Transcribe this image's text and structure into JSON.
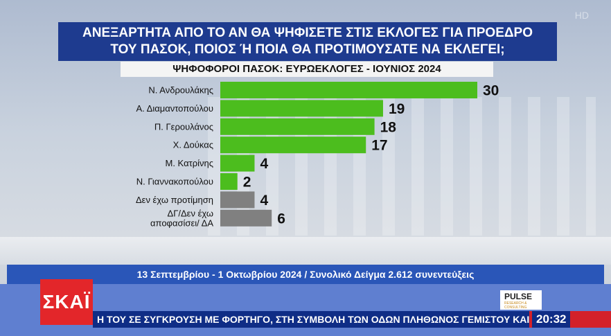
{
  "channel": {
    "hd_badge": "HD",
    "logo_text": "ΣΚΑΪ"
  },
  "poll": {
    "title_line1": "ΑΝΕΞΑΡΤΗΤΑ ΑΠΟ ΤΟ ΑΝ ΘΑ ΨΗΦΙΣΕΤΕ ΣΤΙΣ ΕΚΛΟΓΕΣ ΓΙΑ ΠΡΟΕΔΡΟ",
    "title_line2": "ΤΟΥ ΠΑΣΟΚ, ΠΟΙΟΣ Ή ΠΟΙΑ ΘΑ ΠΡΟΤΙΜΟΥΣΑΤΕ ΝΑ ΕΚΛΕΓΕΙ;",
    "subtitle": "ΨΗΦΟΦΟΡΟΙ ΠΑΣΟΚ: ΕΥΡΩΕΚΛΟΓΕΣ - ΙΟΥΝΙΟΣ 2024",
    "source": "13 Σεπτεμβρίου - 1 Οκτωβρίου 2024 / Συνολικό Δείγμα 2.612 συνεντεύξεις",
    "pollster_logo": "PULSE",
    "pollster_tagline": "RESEARCH & CONSULTING"
  },
  "chart_data": {
    "type": "bar",
    "orientation": "horizontal",
    "title": "ΑΝΕΞΑΡΤΗΤΑ ΑΠΟ ΤΟ ΑΝ ΘΑ ΨΗΦΙΣΕΤΕ ΣΤΙΣ ΕΚΛΟΓΕΣ ΓΙΑ ΠΡΟΕΔΡΟ ΤΟΥ ΠΑΣΟΚ, ΠΟΙΟΣ Ή ΠΟΙΑ ΘΑ ΠΡΟΤΙΜΟΥΣΑΤΕ ΝΑ ΕΚΛΕΓΕΙ;",
    "subtitle": "ΨΗΦΟΦΟΡΟΙ ΠΑΣΟΚ: ΕΥΡΩΕΚΛΟΓΕΣ - ΙΟΥΝΙΟΣ 2024",
    "categories": [
      [
        "Ν. Ανδρουλάκης"
      ],
      [
        "Α. Διαμαντοπούλου"
      ],
      [
        "Π. Γερουλάνος"
      ],
      [
        "Χ. Δούκας"
      ],
      [
        "Μ. Κατρίνης"
      ],
      [
        "Ν. Γιαννακοπούλου"
      ],
      [
        "Δεν έχω προτίμηση"
      ],
      [
        "ΔΓ/Δεν έχω",
        "αποφασίσει/ ΔΑ"
      ]
    ],
    "values": [
      30,
      19,
      18,
      17,
      4,
      2,
      4,
      6
    ],
    "bar_colors": [
      "#4cbd1e",
      "#4cbd1e",
      "#4cbd1e",
      "#4cbd1e",
      "#4cbd1e",
      "#4cbd1e",
      "#808080",
      "#808080"
    ],
    "xlim": [
      0,
      30
    ],
    "grid": false,
    "legend": "none"
  },
  "ticker": {
    "text": "Η ΤΟΥ ΣΕ ΣΥΓΚΡΟΥΣΗ ΜΕ ΦΟΡΤΗΓΟ, ΣΤΗ ΣΥΜΒΟΛΗ ΤΩΝ ΟΔΩΝ ΠΛΗΘΩΝΟΣ ΓΕΜΙΣΤΟΥ ΚΑΙ ΚΑ",
    "time": "20:32"
  }
}
